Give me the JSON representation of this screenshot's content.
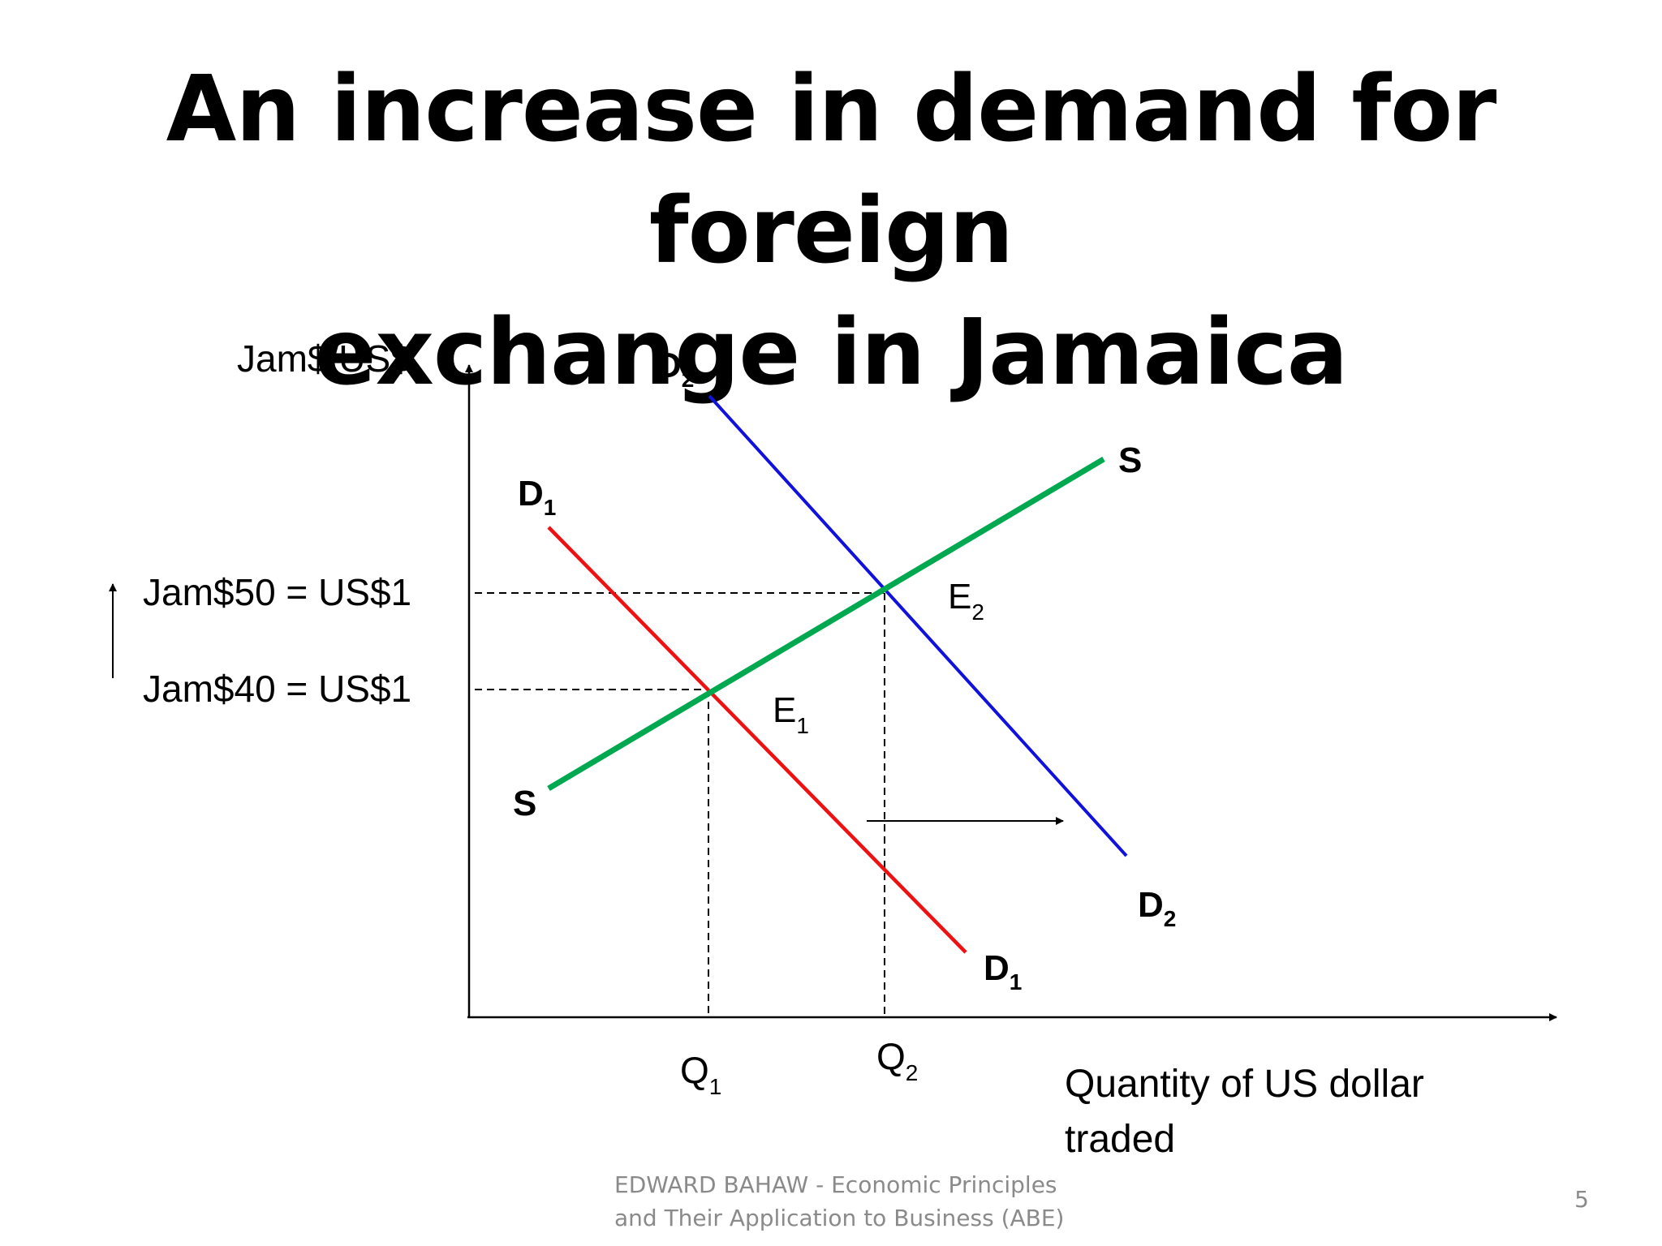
{
  "title": {
    "line1": "An increase in demand for foreign",
    "line2": "exchange in Jamaica"
  },
  "axes": {
    "y_label": "Jam$/US$",
    "x_label_line1": "Quantity of US dollar",
    "x_label_line2": "traded"
  },
  "price_levels": {
    "high": "Jam$50 = US$1",
    "low": "Jam$40 = US$1"
  },
  "curves": {
    "d1": {
      "letter": "D",
      "sub": "1",
      "color": "#ee1111"
    },
    "d2": {
      "letter": "D",
      "sub": "2",
      "color": "#1111dd"
    },
    "s": {
      "letter": "S",
      "color": "#00a84f"
    }
  },
  "equilibria": {
    "e1": {
      "letter": "E",
      "sub": "1"
    },
    "e2": {
      "letter": "E",
      "sub": "2"
    }
  },
  "quantities": {
    "q1": {
      "letter": "Q",
      "sub": "1"
    },
    "q2": {
      "letter": "Q",
      "sub": "2"
    }
  },
  "footer": {
    "line1": "EDWARD BAHAW - Economic Principles",
    "line2": "and Their Application to Business (ABE)",
    "page": "5"
  }
}
